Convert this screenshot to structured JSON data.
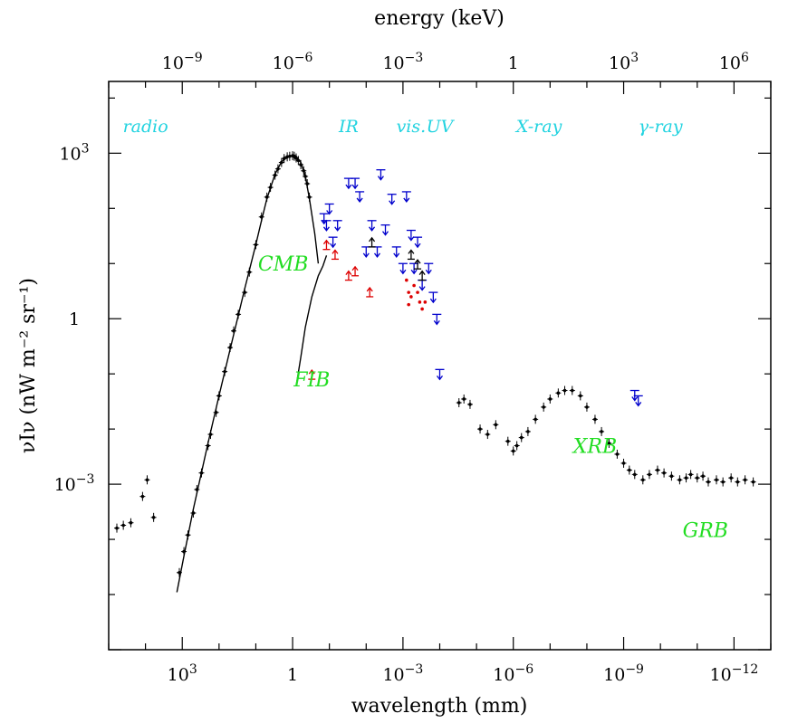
{
  "chart_data": {
    "type": "scatter",
    "title": "",
    "xlabel": "wavelength (mm)",
    "x2label": "energy (keV)",
    "ylabel": "νIν (nW m⁻² sr⁻¹)",
    "x_scale": "log",
    "y_scale": "log",
    "x_direction": "decreasing",
    "xlim": [
      100000,
      1e-13
    ],
    "ylim": [
      1e-06,
      20000
    ],
    "x2lim": [
      1e-11,
      10000000.0
    ],
    "x_ticks": [
      {
        "value": 1000,
        "base": "10",
        "exp": "3"
      },
      {
        "value": 1,
        "base": "1",
        "exp": ""
      },
      {
        "value": 0.001,
        "base": "10",
        "exp": "−3"
      },
      {
        "value": 1e-06,
        "base": "10",
        "exp": "−6"
      },
      {
        "value": 1e-09,
        "base": "10",
        "exp": "−9"
      },
      {
        "value": 1e-12,
        "base": "10",
        "exp": "−12"
      }
    ],
    "x2_ticks": [
      {
        "value": 1e-09,
        "base": "10",
        "exp": "−9"
      },
      {
        "value": 1e-06,
        "base": "10",
        "exp": "−6"
      },
      {
        "value": 0.001,
        "base": "10",
        "exp": "−3"
      },
      {
        "value": 1,
        "base": "1",
        "exp": ""
      },
      {
        "value": 1000,
        "base": "10",
        "exp": "3"
      },
      {
        "value": 1000000,
        "base": "10",
        "exp": "6"
      }
    ],
    "y_ticks": [
      {
        "value": 1000,
        "base": "10",
        "exp": "3"
      },
      {
        "value": 1,
        "base": "1",
        "exp": ""
      },
      {
        "value": 0.001,
        "base": "10",
        "exp": "−3"
      }
    ],
    "band_labels": [
      {
        "text": "radio",
        "x": 10000
      },
      {
        "text": "IR",
        "x": 0.03
      },
      {
        "text": "vis.",
        "x": 0.0006
      },
      {
        "text": "UV",
        "x": 0.0001
      },
      {
        "text": "X-ray",
        "x": 2e-07
      },
      {
        "text": "γ-ray",
        "x": 1e-10
      }
    ],
    "band_label_y": 3000,
    "component_labels": [
      {
        "text": "CMB",
        "x": 1.8,
        "y": 10
      },
      {
        "text": "FIB",
        "x": 0.3,
        "y": 0.08
      },
      {
        "text": "XRB",
        "x": 6e-09,
        "y": 0.005
      },
      {
        "text": "GRB",
        "x": 6e-12,
        "y": 0.00015
      }
    ],
    "colors": {
      "data": "#000000",
      "upper_limits": "#0000cc",
      "lower_limits": "#dd0000",
      "band_labels": "#22d3e0",
      "component_labels": "#22dd22"
    },
    "series": [
      {
        "kind": "curve",
        "points": [
          [
            1400,
            1.1e-05
          ],
          [
            900,
            5e-05
          ],
          [
            500,
            0.00035
          ],
          [
            200,
            0.0055
          ],
          [
            100,
            0.04
          ],
          [
            50,
            0.28
          ],
          [
            20,
            3.5
          ],
          [
            10,
            22
          ],
          [
            7,
            60
          ],
          [
            5,
            150
          ],
          [
            3,
            420
          ],
          [
            2,
            700
          ],
          [
            1.4,
            860
          ],
          [
            1.07,
            900
          ],
          [
            0.8,
            850
          ],
          [
            0.6,
            680
          ],
          [
            0.45,
            380
          ],
          [
            0.35,
            150
          ],
          [
            0.25,
            35
          ],
          [
            0.2,
            10
          ]
        ]
      },
      {
        "kind": "curve",
        "points": [
          [
            0.8,
            0.06
          ],
          [
            0.6,
            0.2
          ],
          [
            0.45,
            0.7
          ],
          [
            0.3,
            2.5
          ],
          [
            0.2,
            6
          ],
          [
            0.15,
            9
          ],
          [
            0.12,
            14
          ]
        ]
      },
      {
        "kind": "points",
        "name": "radio",
        "points": [
          [
            60000,
            0.00016
          ],
          [
            40000,
            0.00018
          ],
          [
            25000,
            0.0002
          ],
          [
            12000,
            0.0006
          ],
          [
            9000,
            0.0012
          ],
          [
            6000,
            0.00025
          ],
          [
            1200,
            2.5e-05
          ],
          [
            900,
            6e-05
          ],
          [
            700,
            0.00012
          ],
          [
            500,
            0.0003
          ],
          [
            400,
            0.0008
          ],
          [
            300,
            0.0016
          ],
          [
            200,
            0.005
          ],
          [
            170,
            0.008
          ],
          [
            120,
            0.02
          ],
          [
            100,
            0.04
          ],
          [
            70,
            0.11
          ],
          [
            50,
            0.3
          ],
          [
            40,
            0.6
          ],
          [
            30,
            1.2
          ],
          [
            20,
            3
          ],
          [
            15,
            7
          ],
          [
            10,
            22
          ],
          [
            7,
            70
          ],
          [
            5,
            160
          ],
          [
            4,
            240
          ],
          [
            3,
            400
          ],
          [
            2.5,
            520
          ],
          [
            2,
            680
          ],
          [
            1.7,
            800
          ],
          [
            1.4,
            860
          ],
          [
            1.2,
            880
          ],
          [
            1,
            900
          ],
          [
            0.9,
            880
          ],
          [
            0.8,
            820
          ],
          [
            0.7,
            740
          ],
          [
            0.6,
            620
          ],
          [
            0.5,
            480
          ],
          [
            0.45,
            380
          ],
          [
            0.4,
            280
          ],
          [
            0.35,
            160
          ]
        ]
      },
      {
        "kind": "points",
        "name": "XRB",
        "points": [
          [
            3e-05,
            0.03
          ],
          [
            2.2e-05,
            0.035
          ],
          [
            1.5e-05,
            0.028
          ],
          [
            8e-06,
            0.01
          ],
          [
            5e-06,
            0.008
          ],
          [
            3e-06,
            0.012
          ],
          [
            1.4e-06,
            0.006
          ],
          [
            1e-06,
            0.004
          ],
          [
            8e-07,
            0.005
          ],
          [
            6e-07,
            0.007
          ],
          [
            4e-07,
            0.009
          ],
          [
            2.5e-07,
            0.015
          ],
          [
            1.5e-07,
            0.025
          ],
          [
            1e-07,
            0.035
          ],
          [
            6e-08,
            0.045
          ],
          [
            4e-08,
            0.05
          ],
          [
            2.5e-08,
            0.05
          ],
          [
            1.5e-08,
            0.04
          ],
          [
            1e-08,
            0.025
          ],
          [
            6e-09,
            0.015
          ],
          [
            4e-09,
            0.009
          ],
          [
            2.5e-09,
            0.0055
          ],
          [
            1.5e-09,
            0.0035
          ],
          [
            1e-09,
            0.0024
          ],
          [
            7e-10,
            0.0018
          ],
          [
            5e-10,
            0.0015
          ],
          [
            3e-10,
            0.0012
          ],
          [
            2e-10,
            0.0015
          ],
          [
            1.2e-10,
            0.0018
          ],
          [
            8e-11,
            0.0016
          ],
          [
            5e-11,
            0.0014
          ],
          [
            3e-11,
            0.0012
          ],
          [
            2e-11,
            0.0013
          ],
          [
            1.5e-11,
            0.0015
          ],
          [
            1e-11,
            0.0013
          ],
          [
            7e-12,
            0.0014
          ],
          [
            5e-12,
            0.0011
          ],
          [
            3e-12,
            0.0012
          ],
          [
            2e-12,
            0.0011
          ],
          [
            1.2e-12,
            0.0013
          ],
          [
            8e-13,
            0.0011
          ],
          [
            5e-13,
            0.0012
          ],
          [
            3e-13,
            0.0011
          ]
        ]
      },
      {
        "kind": "upper_limits",
        "points": [
          [
            0.14,
            80
          ],
          [
            0.12,
            60
          ],
          [
            0.1,
            120
          ],
          [
            0.08,
            30
          ],
          [
            0.06,
            60
          ],
          [
            0.03,
            350
          ],
          [
            0.02,
            350
          ],
          [
            0.015,
            200
          ],
          [
            0.01,
            20
          ],
          [
            0.007,
            60
          ],
          [
            0.005,
            20
          ],
          [
            0.004,
            500
          ],
          [
            0.003,
            50
          ],
          [
            0.002,
            180
          ],
          [
            0.0015,
            20
          ],
          [
            0.001,
            10
          ],
          [
            0.0008,
            200
          ],
          [
            0.0006,
            40
          ],
          [
            0.0005,
            10
          ],
          [
            0.0004,
            30
          ],
          [
            0.0003,
            5
          ],
          [
            0.0002,
            10
          ],
          [
            0.00015,
            3
          ],
          [
            0.00012,
            1.2
          ],
          [
            0.0001,
            0.12
          ],
          [
            5e-10,
            0.05
          ],
          [
            4e-10,
            0.04
          ]
        ]
      },
      {
        "kind": "lower_limits",
        "points": [
          [
            0.3,
            0.08
          ],
          [
            0.12,
            18
          ],
          [
            0.07,
            12
          ],
          [
            0.03,
            5
          ],
          [
            0.02,
            6
          ],
          [
            0.008,
            2.5
          ]
        ]
      },
      {
        "kind": "lower_limits_black",
        "points": [
          [
            0.007,
            20
          ],
          [
            0.0006,
            12
          ],
          [
            0.0004,
            8
          ],
          [
            0.0003,
            5
          ]
        ]
      },
      {
        "kind": "red_dots",
        "points": [
          [
            0.0008,
            5
          ],
          [
            0.0007,
            3
          ],
          [
            0.0006,
            2.5
          ],
          [
            0.0005,
            4
          ],
          [
            0.0004,
            3
          ],
          [
            0.00035,
            2
          ],
          [
            0.0003,
            1.5
          ],
          [
            0.00025,
            2
          ],
          [
            0.0007,
            1.8
          ]
        ]
      }
    ]
  }
}
